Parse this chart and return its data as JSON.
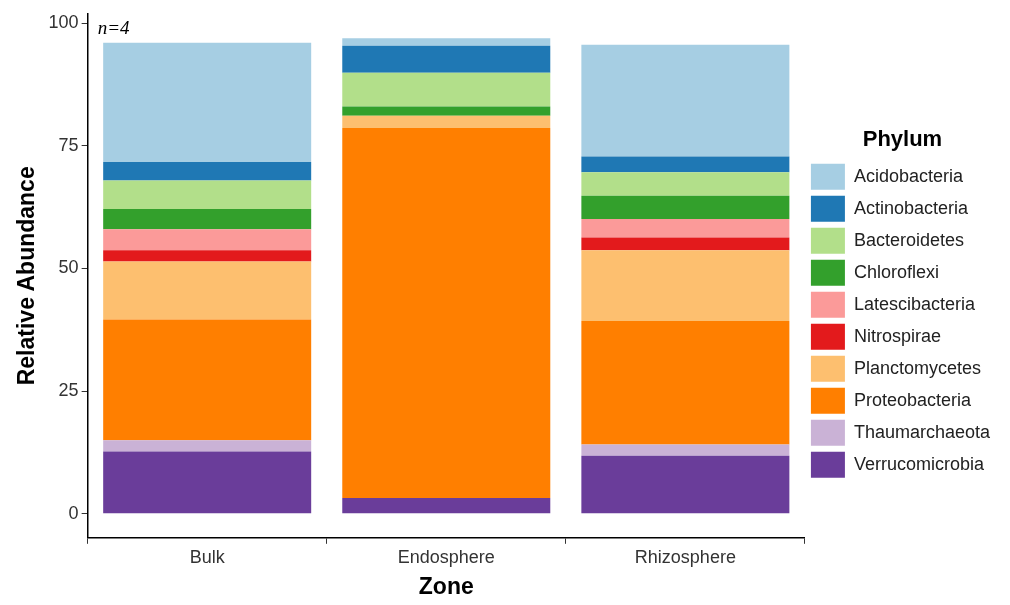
{
  "chart_data": {
    "type": "bar",
    "stacked": true,
    "xlabel": "Zone",
    "ylabel": "Relative Abundance",
    "legend_title": "Phylum",
    "legend": "right",
    "grid": false,
    "categories": [
      "Bulk",
      "Endosphere",
      "Rhizosphere"
    ],
    "ylim": [
      -4.9,
      101.9
    ],
    "yticks": [
      0,
      25,
      50,
      75,
      100
    ],
    "annotations": [
      "n=4"
    ],
    "series": [
      {
        "name": "Verrucomicrobia",
        "color": "#6a3d9a",
        "values": [
          12.7,
          3.2,
          11.8
        ]
      },
      {
        "name": "Thaumarchaeota",
        "color": "#cab2d6",
        "values": [
          2.3,
          null,
          2.3
        ]
      },
      {
        "name": "Proteobacteria",
        "color": "#ff7f00",
        "values": [
          24.6,
          75.4,
          25.2
        ]
      },
      {
        "name": "Planctomycetes",
        "color": "#fdbf6f",
        "values": [
          11.8,
          2.5,
          14.4
        ]
      },
      {
        "name": "Nitrospirae",
        "color": "#e31a1c",
        "values": [
          2.3,
          0,
          2.6
        ]
      },
      {
        "name": "Latescibacteria",
        "color": "#fb9a99",
        "values": [
          4.3,
          0,
          3.8
        ]
      },
      {
        "name": "Chloroflexi",
        "color": "#33a02c",
        "values": [
          4.1,
          1.9,
          4.7
        ]
      },
      {
        "name": "Bacteroidetes",
        "color": "#b2df8a",
        "values": [
          5.8,
          6.9,
          4.8
        ]
      },
      {
        "name": "Actinobacteria",
        "color": "#1f78b4",
        "values": [
          3.8,
          5.5,
          3.2
        ]
      },
      {
        "name": "Acidobacteria",
        "color": "#a6cee3",
        "values": [
          24.3,
          1.5,
          22.8
        ]
      }
    ]
  }
}
